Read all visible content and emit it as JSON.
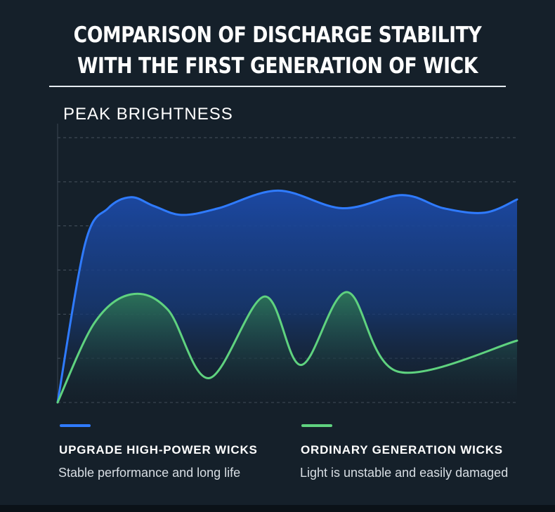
{
  "title": {
    "line1": "COMPARISON OF DISCHARGE STABILITY",
    "line2": "WITH THE FIRST GENERATION OF WICK"
  },
  "colors": {
    "background": "#15202a",
    "upgrade": "#2f7bff",
    "ordinary": "#5fd27f"
  },
  "chart_data": {
    "type": "area",
    "title": "COMPARISON OF DISCHARGE STABILITY WITH THE FIRST GENERATION OF WICK",
    "ylabel": "PEAK BRIGHTNESS",
    "xlabel": "",
    "xlim": [
      0,
      100
    ],
    "ylim": [
      0,
      6
    ],
    "grid": true,
    "legend_position": "bottom",
    "series": [
      {
        "name": "UPGRADE HIGH-POWER WICKS",
        "description": "Stable performance and long life",
        "color": "#2f7bff",
        "points": [
          [
            0,
            0
          ],
          [
            6,
            3.6
          ],
          [
            11,
            4.4
          ],
          [
            16,
            4.65
          ],
          [
            21,
            4.45
          ],
          [
            27,
            4.25
          ],
          [
            35,
            4.4
          ],
          [
            48,
            4.8
          ],
          [
            62,
            4.4
          ],
          [
            75,
            4.7
          ],
          [
            84,
            4.4
          ],
          [
            93,
            4.3
          ],
          [
            100,
            4.6
          ]
        ]
      },
      {
        "name": "ORDINARY GENERATION WICKS",
        "description": "Light is unstable and easily damaged",
        "color": "#5fd27f",
        "points": [
          [
            0,
            0
          ],
          [
            8,
            1.8
          ],
          [
            16,
            2.45
          ],
          [
            24,
            2.1
          ],
          [
            33,
            0.55
          ],
          [
            45,
            2.4
          ],
          [
            53,
            0.85
          ],
          [
            63,
            2.5
          ],
          [
            74,
            0.7
          ],
          [
            100,
            1.4
          ]
        ]
      }
    ]
  }
}
